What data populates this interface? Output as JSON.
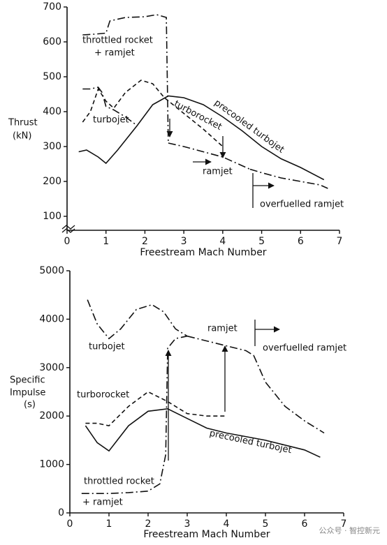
{
  "chart_data": [
    {
      "type": "line",
      "ylabel": [
        "Thrust",
        "(kN)"
      ],
      "xlabel": "Freestream Mach Number",
      "xlim": [
        0,
        7
      ],
      "ylim": [
        60,
        700
      ],
      "xticks": [
        0,
        1,
        2,
        3,
        4,
        5,
        6,
        7
      ],
      "yticks": [
        100,
        200,
        300,
        400,
        500,
        600,
        700
      ],
      "annotations": [
        "+ ramjet"
      ],
      "series": [
        {
          "name": "throttled rocket",
          "color": "#111111",
          "style": "dashdot",
          "x": [
            0.4,
            0.7,
            1.0,
            1.1,
            1.5,
            2.0,
            2.3,
            2.55,
            2.6
          ],
          "values": [
            620,
            622,
            625,
            660,
            670,
            672,
            678,
            670,
            310
          ]
        },
        {
          "name": "turbojet",
          "color": "#111111",
          "style": "dashdot",
          "x": [
            0.4,
            0.6,
            0.8,
            0.9,
            1.0,
            1.2,
            1.5,
            1.8
          ],
          "values": [
            465,
            465,
            470,
            455,
            415,
            405,
            385,
            360
          ]
        },
        {
          "name": "turborocket",
          "color": "#111111",
          "style": "dashed",
          "x": [
            0.4,
            0.6,
            0.8,
            1.0,
            1.2,
            1.5,
            1.9,
            2.2,
            2.5,
            3.0,
            3.5,
            4.0
          ],
          "values": [
            370,
            400,
            465,
            430,
            410,
            455,
            490,
            480,
            440,
            395,
            350,
            300
          ]
        },
        {
          "name": "precooled turbojet",
          "color": "#111111",
          "style": "solid",
          "x": [
            0.3,
            0.5,
            0.8,
            1.0,
            1.3,
            1.8,
            2.2,
            2.6,
            3.0,
            3.5,
            4.0,
            4.5,
            5.0,
            5.5,
            6.0,
            6.6
          ],
          "values": [
            285,
            290,
            270,
            252,
            290,
            360,
            420,
            445,
            440,
            420,
            385,
            345,
            300,
            265,
            240,
            205
          ]
        },
        {
          "name": "ramjet",
          "color": "#111111",
          "style": "dashdot",
          "x": [
            2.6,
            3.0,
            3.5,
            4.0,
            4.5,
            4.7
          ],
          "values": [
            310,
            300,
            285,
            270,
            245,
            235
          ]
        },
        {
          "name": "overfuelled ramjet",
          "color": "#111111",
          "style": "dashdot",
          "x": [
            4.7,
            5.0,
            5.5,
            6.0,
            6.5,
            6.7
          ],
          "values": [
            235,
            225,
            210,
            200,
            190,
            180
          ]
        }
      ]
    },
    {
      "type": "line",
      "ylabel": [
        "Specific",
        "Impulse",
        "(s)"
      ],
      "xlabel": "Freestream Mach Number",
      "xlim": [
        0,
        7
      ],
      "ylim": [
        0,
        5000
      ],
      "xticks": [
        0,
        1,
        2,
        3,
        4,
        5,
        6,
        7
      ],
      "yticks": [
        0,
        1000,
        2000,
        3000,
        4000,
        5000
      ],
      "annotations": [
        "+ ramjet"
      ],
      "series": [
        {
          "name": "throttled rocket",
          "color": "#111111",
          "style": "dashdot",
          "x": [
            0.3,
            1.0,
            1.5,
            2.0,
            2.3,
            2.45,
            2.5,
            2.7,
            3.0
          ],
          "values": [
            400,
            400,
            420,
            450,
            600,
            1200,
            3400,
            3600,
            3650
          ]
        },
        {
          "name": "turbojet",
          "color": "#111111",
          "style": "dashdot",
          "x": [
            0.45,
            0.7,
            1.0,
            1.3,
            1.7,
            2.1,
            2.4,
            2.7,
            3.0
          ],
          "values": [
            4400,
            3900,
            3600,
            3800,
            4200,
            4300,
            4150,
            3800,
            3650
          ]
        },
        {
          "name": "turborocket",
          "color": "#111111",
          "style": "dashed",
          "x": [
            0.4,
            0.7,
            1.0,
            1.5,
            2.0,
            2.5,
            3.0,
            3.5,
            4.0
          ],
          "values": [
            1850,
            1850,
            1800,
            2200,
            2500,
            2300,
            2050,
            2000,
            2000
          ]
        },
        {
          "name": "precooled turbojet",
          "color": "#111111",
          "style": "solid",
          "x": [
            0.4,
            0.7,
            1.0,
            1.5,
            2.0,
            2.5,
            3.0,
            3.5,
            4.0,
            5.0,
            6.0,
            6.4
          ],
          "values": [
            1800,
            1450,
            1280,
            1800,
            2100,
            2150,
            1950,
            1750,
            1650,
            1500,
            1300,
            1150
          ]
        },
        {
          "name": "ramjet",
          "color": "#111111",
          "style": "dashdot",
          "x": [
            3.0,
            3.5,
            4.0,
            4.5,
            4.7
          ],
          "values": [
            3650,
            3550,
            3450,
            3350,
            3250
          ]
        },
        {
          "name": "overfuelled ramjet",
          "color": "#111111",
          "style": "dashdot",
          "x": [
            4.7,
            5.0,
            5.5,
            6.0,
            6.5
          ],
          "values": [
            3250,
            2700,
            2200,
            1900,
            1650
          ]
        }
      ]
    }
  ],
  "watermark": "公众号 · 智控新元"
}
